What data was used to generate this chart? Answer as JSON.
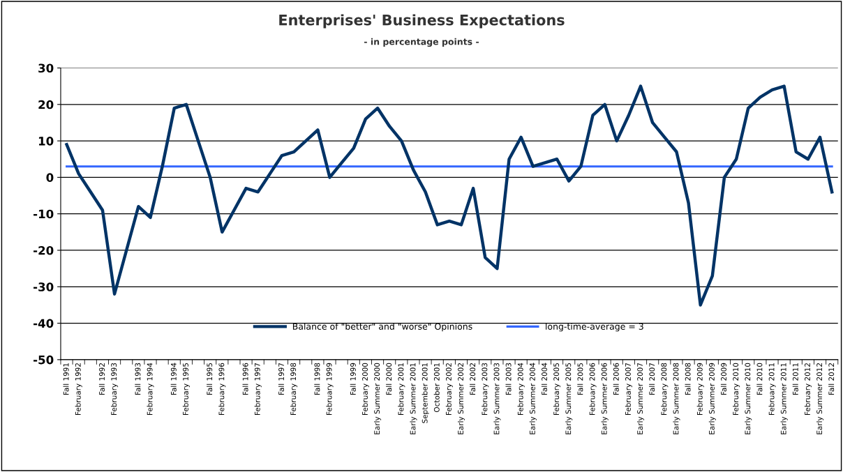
{
  "chart_data": {
    "type": "line",
    "title": "Enterprises' Business Expectations",
    "subtitle": "- in percentage points -",
    "categories": [
      "Fall 1991",
      "February 1992",
      null,
      "Fall 1992",
      "February 1993",
      null,
      "Fall 1993",
      "February 1994",
      null,
      "Fall 1994",
      "February 1995",
      null,
      "Fall 1995",
      "February 1996",
      null,
      "Fall 1996",
      "February 1997",
      null,
      "Fall 1997",
      "February 1998",
      null,
      "Fall 1998",
      "February 1999",
      null,
      "Fall 1999",
      "February 2000",
      "Early Summer 2000",
      "Fall 2000",
      "February 2001",
      "Early Summer 2001",
      "September 2001",
      "October 2001",
      "February 2002",
      "Early Summer 2002",
      "Fall 2002",
      "February 2003",
      "Early Summer 2003",
      "Fall 2003",
      "February 2004",
      "Early Summer 2004",
      "Fall 2004",
      "February 2005",
      "Early Summer 2005",
      "Fall 2005",
      "February 2006",
      "Early Summer 2006",
      "Fall 2006",
      "February 2007",
      "Early Summer 2007",
      "Fall 2007",
      "February 2008",
      "Early Summer 2008",
      "Fall 2008",
      "February 2009",
      "Early Summer 2009",
      "Fall 2009",
      "February 2010",
      "Early Summer 2010",
      "Fall 2010",
      "February 2011",
      "Early Summer 2011",
      "Fall 2011",
      "February 2012",
      "Early Summer 2012",
      "Fall 2012"
    ],
    "series": [
      {
        "name": "Balance of \"better\" and \"worse\" Opinions",
        "color": "#003366",
        "values": [
          9,
          1,
          -4,
          -9,
          -32,
          -20,
          -8,
          -11,
          3,
          19,
          20,
          10,
          0,
          -15,
          -9,
          -3,
          -4,
          1,
          6,
          7,
          10,
          13,
          0,
          4,
          8,
          16,
          19,
          14,
          10,
          2,
          -4,
          -13,
          -12,
          -13,
          -3,
          -22,
          -25,
          5,
          11,
          3,
          4,
          5,
          -1,
          3,
          17,
          20,
          10,
          17,
          25,
          15,
          11,
          7,
          -7,
          -35,
          -27,
          0,
          5,
          19,
          22,
          24,
          25,
          7,
          5,
          11,
          -4
        ]
      },
      {
        "name": "long-time-average = 3",
        "color": "#3366ff",
        "values": [
          3,
          3,
          3,
          3,
          3,
          3,
          3,
          3,
          3,
          3,
          3,
          3,
          3,
          3,
          3,
          3,
          3,
          3,
          3,
          3,
          3,
          3,
          3,
          3,
          3,
          3,
          3,
          3,
          3,
          3,
          3,
          3,
          3,
          3,
          3,
          3,
          3,
          3,
          3,
          3,
          3,
          3,
          3,
          3,
          3,
          3,
          3,
          3,
          3,
          3,
          3,
          3,
          3,
          3,
          3,
          3,
          3,
          3,
          3,
          3,
          3,
          3,
          3,
          3,
          3
        ]
      }
    ],
    "ylim": [
      -50,
      30
    ],
    "yticks": [
      -50,
      -40,
      -30,
      -20,
      -10,
      0,
      10,
      20,
      30
    ],
    "grid": "y",
    "legend": "bottom",
    "marker": "none",
    "line_style": "solid"
  }
}
